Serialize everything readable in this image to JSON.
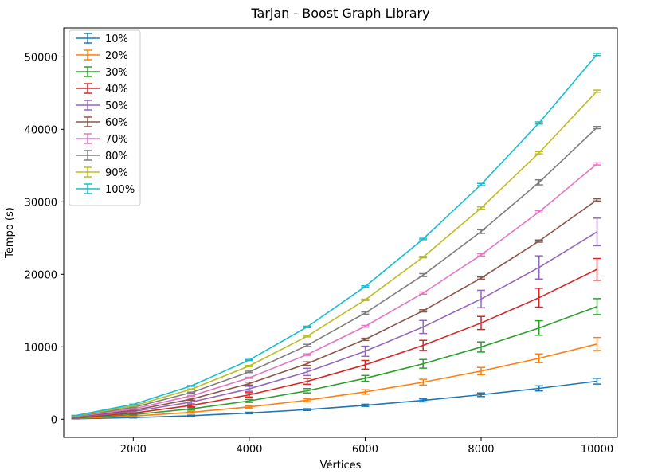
{
  "chart_data": {
    "type": "line",
    "title": "Tarjan - Boost Graph Library",
    "xlabel": "Vértices",
    "ylabel": "Tempo (s)",
    "x": [
      1000,
      2000,
      3000,
      4000,
      5000,
      6000,
      7000,
      8000,
      9000,
      10000
    ],
    "xlim": [
      800,
      10350
    ],
    "ylim": [
      -2500,
      54000
    ],
    "xticks": [
      2000,
      4000,
      6000,
      8000,
      10000
    ],
    "yticks": [
      0,
      10000,
      20000,
      30000,
      40000,
      50000
    ],
    "xtick_labels": [
      "2000",
      "4000",
      "6000",
      "8000",
      "10000"
    ],
    "ytick_labels": [
      "0",
      "10000",
      "20000",
      "30000",
      "40000",
      "50000"
    ],
    "legend_position": "top-left",
    "grid": false,
    "error_bars": true,
    "series": [
      {
        "name": "10%",
        "color": "#1f77b4",
        "values": [
          60,
          220,
          480,
          860,
          1330,
          1920,
          2600,
          3380,
          4260,
          5250
        ],
        "errors": [
          20,
          50,
          80,
          100,
          120,
          150,
          200,
          250,
          350,
          400
        ]
      },
      {
        "name": "20%",
        "color": "#ff7f0e",
        "values": [
          110,
          430,
          960,
          1700,
          2630,
          3770,
          5110,
          6650,
          8410,
          10380
        ],
        "errors": [
          30,
          80,
          120,
          150,
          200,
          300,
          400,
          500,
          600,
          900
        ]
      },
      {
        "name": "30%",
        "color": "#2ca02c",
        "values": [
          160,
          640,
          1430,
          2530,
          3930,
          5640,
          7650,
          9970,
          12590,
          15540
        ],
        "errors": [
          30,
          80,
          150,
          200,
          300,
          400,
          600,
          700,
          1000,
          1100
        ]
      },
      {
        "name": "40%",
        "color": "#d62728",
        "values": [
          210,
          850,
          1900,
          3370,
          5230,
          7510,
          10190,
          13280,
          16770,
          20680
        ],
        "errors": [
          40,
          100,
          200,
          300,
          400,
          600,
          700,
          900,
          1300,
          1500
        ]
      },
      {
        "name": "50%",
        "color": "#9467bd",
        "values": [
          260,
          1060,
          2370,
          4200,
          6530,
          9380,
          12730,
          16590,
          20950,
          25850
        ],
        "errors": [
          40,
          120,
          250,
          350,
          500,
          700,
          900,
          1200,
          1600,
          1900
        ]
      },
      {
        "name": "60%",
        "color": "#8c564b",
        "values": [
          310,
          1230,
          2770,
          4920,
          7670,
          11020,
          14960,
          19480,
          24580,
          30260
        ],
        "errors": [
          30,
          60,
          150,
          200,
          250,
          150,
          150,
          150,
          150,
          150
        ]
      },
      {
        "name": "70%",
        "color": "#e377c2",
        "values": [
          360,
          1430,
          3220,
          5720,
          8920,
          12820,
          17410,
          22680,
          28610,
          35230
        ],
        "errors": [
          20,
          40,
          60,
          80,
          100,
          120,
          150,
          150,
          150,
          150
        ]
      },
      {
        "name": "80%",
        "color": "#7f7f7f",
        "values": [
          410,
          1640,
          3680,
          6530,
          10190,
          14650,
          19890,
          25900,
          32690,
          40250
        ],
        "errors": [
          20,
          40,
          60,
          100,
          150,
          150,
          200,
          250,
          350,
          150
        ]
      },
      {
        "name": "90%",
        "color": "#bcbd22",
        "values": [
          460,
          1840,
          4140,
          7350,
          11460,
          16470,
          22370,
          29140,
          36770,
          45270
        ],
        "errors": [
          20,
          30,
          50,
          80,
          100,
          100,
          100,
          150,
          150,
          150
        ]
      },
      {
        "name": "100%",
        "color": "#17becf",
        "values": [
          510,
          2050,
          4600,
          8170,
          12740,
          18310,
          24870,
          32390,
          40880,
          50340
        ],
        "errors": [
          20,
          30,
          50,
          80,
          100,
          100,
          100,
          150,
          150,
          150
        ]
      }
    ]
  }
}
